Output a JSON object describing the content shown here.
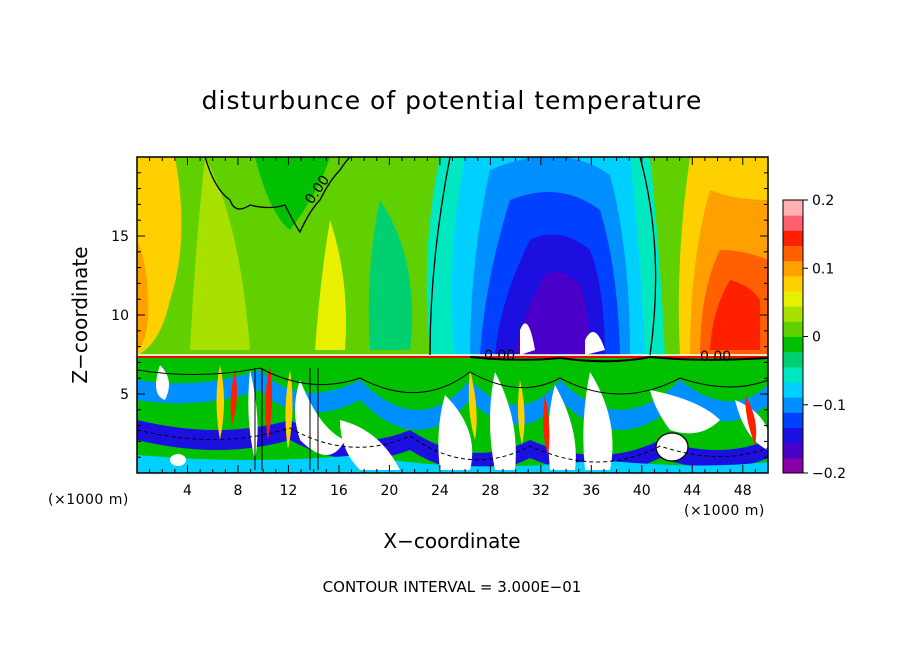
{
  "chart_data": {
    "type": "heatmap",
    "title": "disturbunce of potential temperature",
    "xlabel": "X−coordinate",
    "ylabel": "Z−coordinate",
    "x_unit_left": "(×1000 m)",
    "x_unit_right": "(×1000 m)",
    "footer": "CONTOUR INTERVAL = 3.000E−01",
    "xlim": [
      0,
      50
    ],
    "ylim": [
      0,
      20
    ],
    "x_ticks": [
      "4",
      "8",
      "12",
      "16",
      "20",
      "24",
      "28",
      "32",
      "36",
      "40",
      "44",
      "48"
    ],
    "y_ticks": [
      "5",
      "10",
      "15"
    ],
    "colorbar": {
      "range": [
        -0.2,
        0.2
      ],
      "tick_labels": [
        "0.2",
        "0.1",
        "0",
        "−0.1",
        "−0.2"
      ],
      "colors": [
        "#8a00a8",
        "#4a00c8",
        "#1c10e0",
        "#0040ff",
        "#0090ff",
        "#00d0ff",
        "#00e8c0",
        "#00d070",
        "#00c000",
        "#60d000",
        "#a8e000",
        "#e8f000",
        "#ffd000",
        "#ffa000",
        "#ff6000",
        "#ff2000",
        "#ff6070",
        "#ffb0b0"
      ]
    },
    "contour_labels": [
      "0.00",
      "0.00",
      "0.00"
    ]
  }
}
